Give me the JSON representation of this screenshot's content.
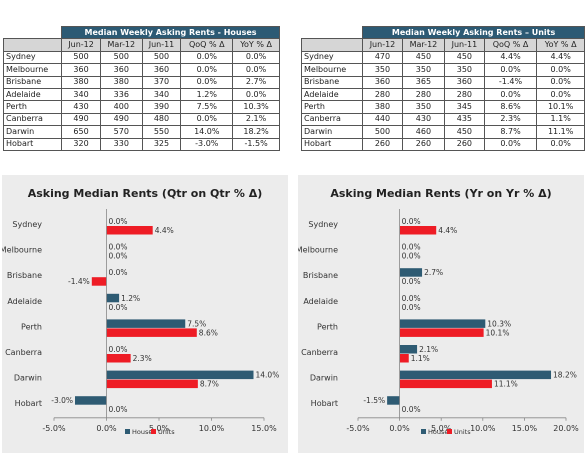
{
  "tables": [
    {
      "title": "Median Weekly Asking Rents - Houses",
      "columns": [
        "Jun-12",
        "Mar-12",
        "Jun-11",
        "QoQ % Δ",
        "YoY % Δ"
      ],
      "rows": [
        {
          "city": "Sydney",
          "values": [
            "500",
            "500",
            "500",
            "0.0%",
            "0.0%"
          ]
        },
        {
          "city": "Melbourne",
          "values": [
            "360",
            "360",
            "360",
            "0.0%",
            "0.0%"
          ]
        },
        {
          "city": "Brisbane",
          "values": [
            "380",
            "380",
            "370",
            "0.0%",
            "2.7%"
          ]
        },
        {
          "city": "Adelaide",
          "values": [
            "340",
            "336",
            "340",
            "1.2%",
            "0.0%"
          ]
        },
        {
          "city": "Perth",
          "values": [
            "430",
            "400",
            "390",
            "7.5%",
            "10.3%"
          ]
        },
        {
          "city": "Canberra",
          "values": [
            "490",
            "490",
            "480",
            "0.0%",
            "2.1%"
          ]
        },
        {
          "city": "Darwin",
          "values": [
            "650",
            "570",
            "550",
            "14.0%",
            "18.2%"
          ]
        },
        {
          "city": "Hobart",
          "values": [
            "320",
            "330",
            "325",
            "-3.0%",
            "-1.5%"
          ]
        }
      ]
    },
    {
      "title": "Median Weekly Asking Rents – Units",
      "columns": [
        "Jun-12",
        "Mar-12",
        "Jun-11",
        "QoQ % Δ",
        "YoY % Δ"
      ],
      "rows": [
        {
          "city": "Sydney",
          "values": [
            "470",
            "450",
            "450",
            "4.4%",
            "4.4%"
          ]
        },
        {
          "city": "Melbourne",
          "values": [
            "350",
            "350",
            "350",
            "0.0%",
            "0.0%"
          ]
        },
        {
          "city": "Brisbane",
          "values": [
            "360",
            "365",
            "360",
            "-1.4%",
            "0.0%"
          ]
        },
        {
          "city": "Adelaide",
          "values": [
            "280",
            "280",
            "280",
            "0.0%",
            "0.0%"
          ]
        },
        {
          "city": "Perth",
          "values": [
            "380",
            "350",
            "345",
            "8.6%",
            "10.1%"
          ]
        },
        {
          "city": "Canberra",
          "values": [
            "440",
            "430",
            "435",
            "2.3%",
            "1.1%"
          ]
        },
        {
          "city": "Darwin",
          "values": [
            "500",
            "460",
            "450",
            "8.7%",
            "11.1%"
          ]
        },
        {
          "city": "Hobart",
          "values": [
            "260",
            "260",
            "260",
            "0.0%",
            "0.0%"
          ]
        }
      ]
    }
  ],
  "chart_data": [
    {
      "type": "bar",
      "orientation": "horizontal",
      "title": "Asking Median Rents (Qtr on Qtr % Δ)",
      "categories": [
        "Sydney",
        "Melbourne",
        "Brisbane",
        "Adelaide",
        "Perth",
        "Canberra",
        "Darwin",
        "Hobart"
      ],
      "series": [
        {
          "name": "Houses",
          "color": "#2e5b73",
          "values": [
            0.0,
            0.0,
            0.0,
            1.2,
            7.5,
            0.0,
            14.0,
            -3.0
          ],
          "labels": [
            "0.0%",
            "0.0%",
            "0.0%",
            "1.2%",
            "7.5%",
            "0.0%",
            "14.0%",
            "-3.0%"
          ]
        },
        {
          "name": "Units",
          "color": "#ee1c25",
          "values": [
            4.4,
            0.0,
            -1.4,
            0.0,
            8.6,
            2.3,
            8.7,
            0.0
          ],
          "labels": [
            "4.4%",
            "0.0%",
            "-1.4%",
            "0.0%",
            "8.6%",
            "2.3%",
            "8.7%",
            "0.0%"
          ]
        }
      ],
      "xlim": [
        -5,
        15
      ],
      "xticks": [
        -5,
        0,
        5,
        10,
        15
      ],
      "xtick_labels": [
        "-5.0%",
        "0.0%",
        "5.0%",
        "10.0%",
        "15.0%"
      ],
      "grid": false,
      "legend": "bottom"
    },
    {
      "type": "bar",
      "orientation": "horizontal",
      "title": "Asking Median Rents (Yr on Yr % Δ)",
      "categories": [
        "Sydney",
        "Melbourne",
        "Brisbane",
        "Adelaide",
        "Perth",
        "Canberra",
        "Darwin",
        "Hobart"
      ],
      "series": [
        {
          "name": "Houses",
          "color": "#2e5b73",
          "values": [
            0.0,
            0.0,
            2.7,
            0.0,
            10.3,
            2.1,
            18.2,
            -1.5
          ],
          "labels": [
            "0.0%",
            "0.0%",
            "2.7%",
            "0.0%",
            "10.3%",
            "2.1%",
            "18.2%",
            "-1.5%"
          ]
        },
        {
          "name": "Units",
          "color": "#ee1c25",
          "values": [
            4.4,
            0.0,
            0.0,
            0.0,
            10.1,
            1.1,
            11.1,
            0.0
          ],
          "labels": [
            "4.4%",
            "0.0%",
            "0.0%",
            "0.0%",
            "10.1%",
            "1.1%",
            "11.1%",
            "0.0%"
          ]
        }
      ],
      "xlim": [
        -5,
        20
      ],
      "xticks": [
        -5,
        0,
        5,
        10,
        15,
        20
      ],
      "xtick_labels": [
        "-5.0%",
        "0.0%",
        "5.0%",
        "10.0%",
        "15.0%",
        "20.0%"
      ],
      "grid": false,
      "legend": "bottom"
    }
  ]
}
